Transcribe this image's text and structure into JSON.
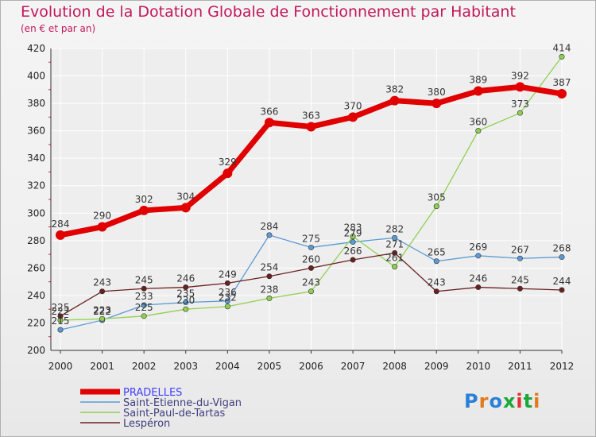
{
  "title": "Evolution de la Dotation Globale de Fonctionnement par Habitant",
  "subtitle": "(en € et par an)",
  "logo_text": "Proxiti",
  "colors": {
    "title": "#c2185b",
    "grid": "#ffffff",
    "axis": "#333333",
    "minor_ticks": "#e0202d"
  },
  "chart_data": {
    "type": "line",
    "x": [
      "2000",
      "2001",
      "2002",
      "2003",
      "2004",
      "2005",
      "2006",
      "2007",
      "2008",
      "2009",
      "2010",
      "2011",
      "2012"
    ],
    "ylim": [
      200,
      420
    ],
    "yticks": [
      200,
      220,
      240,
      260,
      280,
      300,
      320,
      340,
      360,
      380,
      400,
      420
    ],
    "grid": true,
    "legend_position": "bottom-left",
    "series": [
      {
        "name": "PRADELLES",
        "color": "#e00000",
        "label_color": "#4040ff",
        "values": [
          284,
          290,
          302,
          304,
          329,
          366,
          363,
          370,
          382,
          380,
          389,
          392,
          387
        ]
      },
      {
        "name": "Saint-Étienne-du-Vigan",
        "color": "#5b9bd5",
        "label_color": "#404080",
        "values": [
          215,
          222,
          233,
          235,
          236,
          284,
          275,
          279,
          282,
          265,
          269,
          267,
          268
        ]
      },
      {
        "name": "Saint-Paul-de-Tartas",
        "color": "#90d050",
        "label_color": "#404080",
        "values": [
          222,
          223,
          225,
          230,
          232,
          238,
          243,
          283,
          261,
          305,
          360,
          373,
          414
        ]
      },
      {
        "name": "Lespéron",
        "color": "#6b2020",
        "label_color": "#404080",
        "values": [
          225,
          243,
          245,
          246,
          249,
          254,
          260,
          266,
          271,
          243,
          246,
          245,
          244
        ]
      }
    ]
  }
}
